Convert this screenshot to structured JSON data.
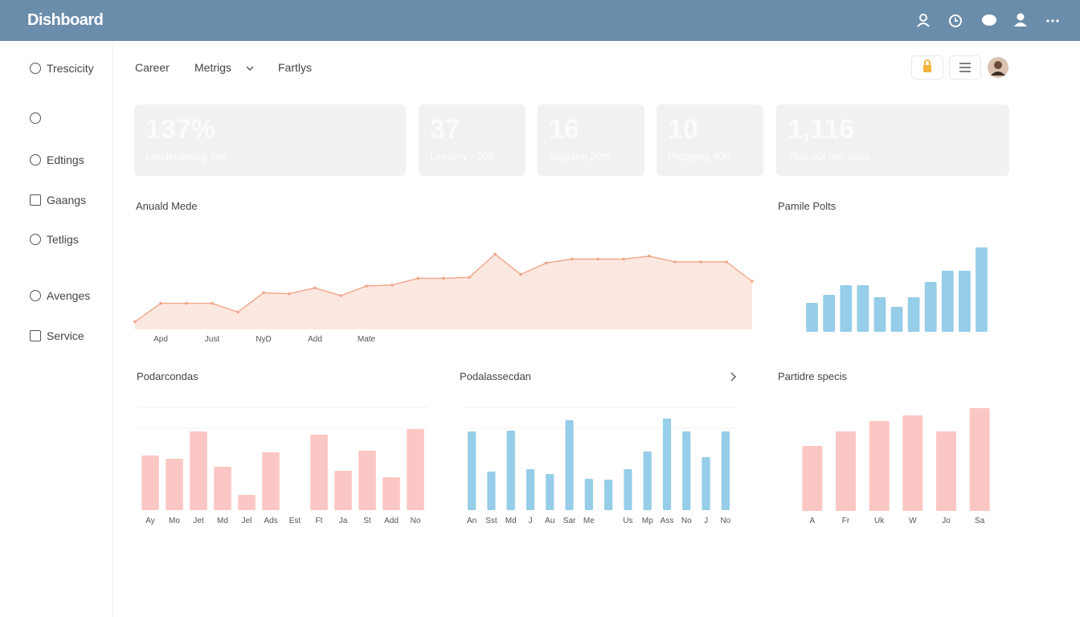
{
  "header": {
    "title": "Dishboard"
  },
  "sidebar": {
    "items": [
      "Trescicity",
      "Edtings",
      "Gaangs",
      "Tetligs",
      "Avenges",
      "Service"
    ]
  },
  "nav": {
    "items": [
      "Career",
      "Metrigs",
      "Fartlys"
    ]
  },
  "cards": [
    {
      "value": "137%",
      "label": "Lendinolsting 3ay"
    },
    {
      "value": "37",
      "label": "Limsliny : 20lt"
    },
    {
      "value": "16",
      "label": "Sagping 20th"
    },
    {
      "value": "10",
      "label": "Pragging 40h"
    },
    {
      "value": "1,116",
      "label": "That out isel adss"
    }
  ],
  "chart_data": [
    {
      "type": "line",
      "title": "Anuald Mede",
      "categories": [
        null,
        "Apd",
        null,
        "Just",
        null,
        "NyD",
        null,
        "Add",
        null,
        "Mate",
        null,
        null,
        null,
        null,
        null,
        null,
        null,
        null,
        null,
        null,
        null,
        null,
        null,
        null,
        null
      ],
      "values": [
        8,
        27,
        27,
        27,
        18,
        38,
        37,
        43,
        35,
        45,
        46,
        53,
        53,
        54,
        78,
        57,
        69,
        73,
        73,
        73,
        76,
        70,
        70,
        70,
        50
      ],
      "color": "#f0a58a",
      "ylim": [
        0,
        100
      ]
    },
    {
      "type": "bar",
      "title": "Pamile Polts",
      "values": [
        36,
        46,
        58,
        58,
        43,
        31,
        43,
        62,
        76,
        76,
        105
      ],
      "color": "#96cde8",
      "ylim": [
        0,
        120
      ]
    },
    {
      "type": "bar",
      "title": "Podarcondas",
      "categories": [
        "Ay",
        "Mo",
        "Jet",
        "Md",
        "Jel",
        "Ads",
        "Est",
        "Ft",
        "Ja",
        "St",
        "Add",
        "No"
      ],
      "values": [
        68,
        64,
        98,
        54,
        19,
        72,
        null,
        94,
        49,
        74,
        41,
        101
      ],
      "color": "#fbc7c4",
      "ylim": [
        0,
        120
      ]
    },
    {
      "type": "bar",
      "title": "Podalassecdan",
      "categories": [
        "An",
        "Sst",
        "Md",
        "J",
        "Au",
        "Sar",
        "Me",
        null,
        "Us",
        "Mp",
        "Ass",
        "No",
        "J",
        "No"
      ],
      "values": [
        98,
        48,
        99,
        51,
        45,
        112,
        39,
        38,
        51,
        73,
        114,
        98,
        66,
        98
      ],
      "color": "#96cde8",
      "ylim": [
        0,
        120
      ]
    },
    {
      "type": "bar",
      "title": "Partidre specis",
      "categories": [
        "A",
        "Fr",
        "Uk",
        "W",
        "Jo",
        "Sa"
      ],
      "values": [
        81,
        99,
        112,
        119,
        99,
        128
      ],
      "color": "#fbc7c4",
      "ylim": [
        0,
        140
      ]
    }
  ]
}
